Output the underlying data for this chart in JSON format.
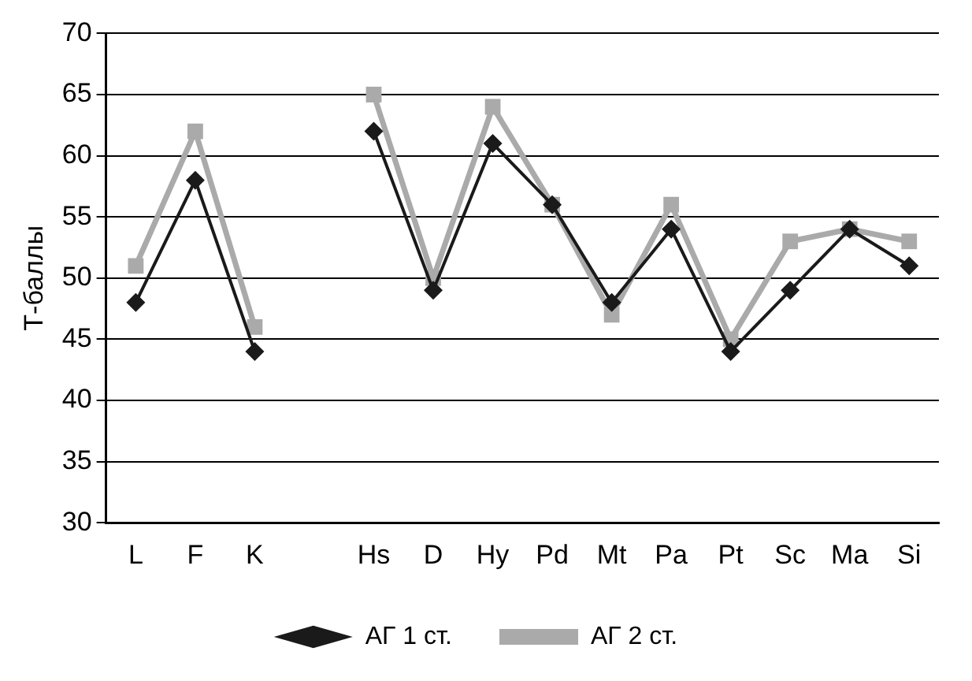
{
  "chart_data": {
    "type": "line",
    "ylabel": "Т-баллы",
    "categories": [
      "L",
      "F",
      "K",
      null,
      "Hs",
      "D",
      "Hy",
      "Pd",
      "Mt",
      "Pa",
      "Pt",
      "Sc",
      "Ma",
      "Si"
    ],
    "series": [
      {
        "name": "АГ 1 ст.",
        "color": "#1a1a1a",
        "marker": "diamond",
        "values": [
          48,
          58,
          44,
          null,
          62,
          49,
          61,
          56,
          48,
          54,
          44,
          49,
          54,
          51
        ]
      },
      {
        "name": "АГ 2 ст.",
        "color": "#aaaaaa",
        "marker": "square",
        "values": [
          51,
          62,
          46,
          null,
          65,
          50,
          64,
          56,
          47,
          56,
          45,
          53,
          54,
          53
        ]
      }
    ],
    "ylim": [
      30,
      70
    ],
    "yticks": [
      30,
      35,
      40,
      45,
      50,
      55,
      60,
      65,
      70
    ],
    "grid": "y",
    "legend": "bottom",
    "line_style": "solid"
  }
}
